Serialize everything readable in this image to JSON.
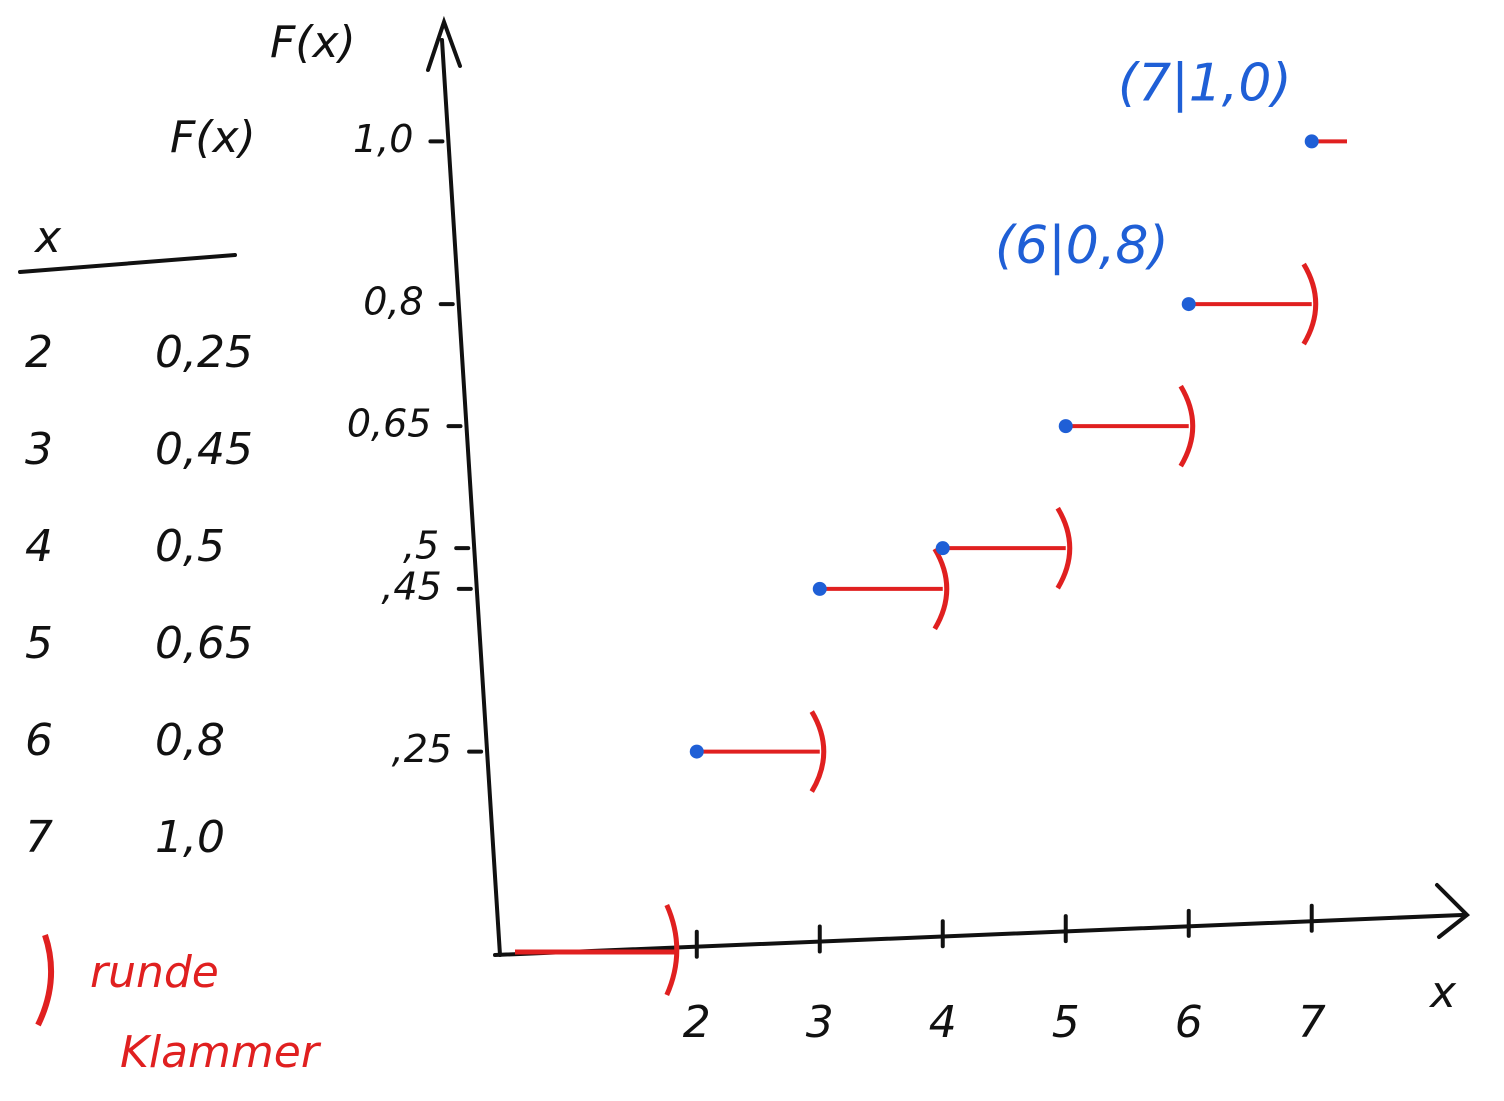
{
  "table": {
    "header": [
      "x",
      "F(x)"
    ],
    "rows": [
      [
        "2",
        "0,25"
      ],
      [
        "3",
        "0,45"
      ],
      [
        "4",
        "0,5"
      ],
      [
        "5",
        "0,65"
      ],
      [
        "6",
        "0,8"
      ],
      [
        "7",
        "1,0"
      ]
    ]
  },
  "note": [
    "runde",
    "Klammer"
  ],
  "chart_data": {
    "type": "step",
    "y_label": "F(x)",
    "x_label": "x",
    "x": [
      2,
      3,
      4,
      5,
      6,
      7
    ],
    "values": [
      0.25,
      0.45,
      0.5,
      0.65,
      0.8,
      1.0
    ],
    "annotations": [
      {
        "text": "(7|1,0)",
        "index": 5
      },
      {
        "text": "(6|0,8)",
        "index": 4
      }
    ],
    "point_color": "#1f5fd6",
    "line_color": "#e02020",
    "xlim": [
      0.4,
      8.1
    ],
    "ylim": [
      0,
      1.1
    ],
    "xticks": [
      2,
      3,
      4,
      5,
      6,
      7
    ],
    "yticks": [
      {
        "value": 0.25,
        "label": ",25"
      },
      {
        "value": 0.45,
        "label": ",45"
      },
      {
        "value": 0.5,
        "label": ",5"
      },
      {
        "value": 0.65,
        "label": "0,65"
      },
      {
        "value": 0.8,
        "label": "0,8"
      },
      {
        "value": 1.0,
        "label": "1,0"
      }
    ]
  }
}
